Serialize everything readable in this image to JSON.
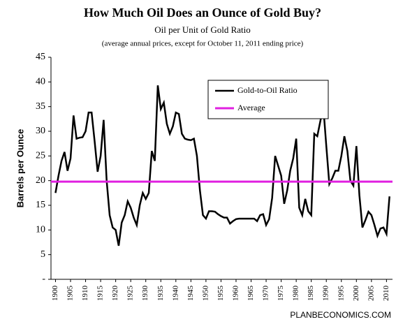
{
  "chart_data": {
    "type": "line",
    "title": "How Much Oil Does an Ounce of Gold Buy?",
    "subtitle": "Oil per Unit of Gold Ratio",
    "note": "(average annual prices, except for October 11, 2011 ending price)",
    "ylabel": "Barrels per Ounce",
    "source": "PLANBECONOMICS.COM",
    "x": [
      1900,
      1901,
      1902,
      1903,
      1904,
      1905,
      1906,
      1907,
      1908,
      1909,
      1910,
      1911,
      1912,
      1913,
      1914,
      1915,
      1916,
      1917,
      1918,
      1919,
      1920,
      1921,
      1922,
      1923,
      1924,
      1925,
      1926,
      1927,
      1928,
      1929,
      1930,
      1931,
      1932,
      1933,
      1934,
      1935,
      1936,
      1937,
      1938,
      1939,
      1940,
      1941,
      1942,
      1943,
      1944,
      1945,
      1946,
      1947,
      1948,
      1949,
      1950,
      1951,
      1952,
      1953,
      1954,
      1955,
      1956,
      1957,
      1958,
      1959,
      1960,
      1961,
      1962,
      1963,
      1964,
      1965,
      1966,
      1967,
      1968,
      1969,
      1970,
      1971,
      1972,
      1973,
      1974,
      1975,
      1976,
      1977,
      1978,
      1979,
      1980,
      1981,
      1982,
      1983,
      1984,
      1985,
      1986,
      1987,
      1988,
      1989,
      1990,
      1991,
      1992,
      1993,
      1994,
      1995,
      1996,
      1997,
      1998,
      1999,
      2000,
      2001,
      2002,
      2003,
      2004,
      2005,
      2006,
      2007,
      2008,
      2009,
      2010,
      2011
    ],
    "series": [
      {
        "name": "Gold-to-Oil Ratio",
        "color": "#000000",
        "values": [
          17.5,
          21,
          24,
          25.8,
          22,
          24.5,
          33.2,
          28.5,
          28.7,
          28.8,
          30,
          33.8,
          33.8,
          28,
          21.8,
          25,
          32.3,
          20,
          13,
          10.5,
          10,
          6.8,
          11.5,
          13,
          15.8,
          14.5,
          12.5,
          11,
          15,
          17.5,
          16.3,
          17.5,
          26,
          24,
          39.3,
          34.5,
          35.8,
          31.5,
          29.5,
          31,
          33.8,
          33.5,
          29.5,
          28.5,
          28.3,
          28.2,
          28.5,
          25,
          18,
          13,
          12.3,
          13.8,
          13.8,
          13.7,
          13.2,
          12.8,
          12.5,
          12.5,
          11.3,
          11.8,
          12.2,
          12.3,
          12.3,
          12.3,
          12.3,
          12.3,
          12.3,
          11.8,
          13,
          13.2,
          11,
          12.2,
          16.5,
          25,
          23,
          21,
          15.3,
          18,
          22,
          24.5,
          28.5,
          14.5,
          13,
          16.3,
          13.8,
          13,
          29.5,
          29,
          32,
          35,
          27,
          19.3,
          20.5,
          22,
          22,
          25,
          29,
          26,
          20,
          19,
          27,
          17,
          10.5,
          12,
          13.7,
          13,
          11,
          8.8,
          10.3,
          10.5,
          9.2,
          16.8
        ]
      }
    ],
    "average": {
      "name": "Average",
      "color": "#e020e0",
      "value": 19.8
    },
    "xlim": [
      1898.5,
      2012
    ],
    "xticks": [
      1900,
      1905,
      1910,
      1915,
      1920,
      1925,
      1930,
      1935,
      1940,
      1945,
      1950,
      1955,
      1960,
      1965,
      1970,
      1975,
      1980,
      1985,
      1990,
      1995,
      2000,
      2005,
      2010
    ],
    "ylim": [
      0,
      45
    ],
    "yticks": [
      {
        "value": 0,
        "label": "-"
      },
      5,
      10,
      15,
      20,
      25,
      30,
      35,
      40,
      45
    ]
  }
}
